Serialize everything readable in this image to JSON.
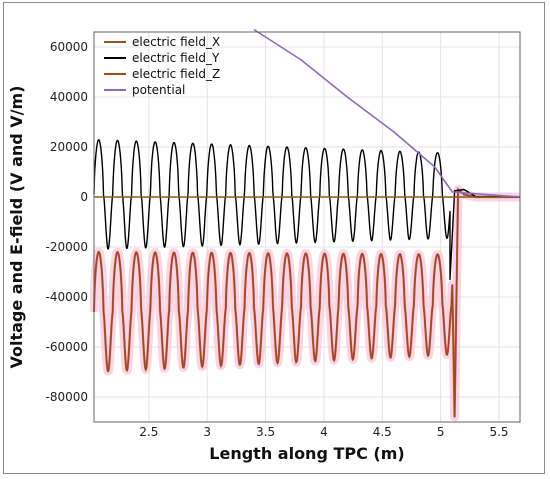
{
  "chart_data": {
    "type": "line",
    "xlabel": "Length along TPC (m)",
    "ylabel": "Voltage and E-field (V and V/m)",
    "xlim": [
      2.03,
      5.68
    ],
    "ylim": [
      -90000,
      66000
    ],
    "x_ticks": [
      "2.5",
      "3",
      "3.5",
      "4",
      "4.5",
      "5",
      "5.5"
    ],
    "y_ticks": [
      "60000",
      "40000",
      "20000",
      "0",
      "-20000",
      "-40000",
      "-60000",
      "-80000"
    ],
    "grid": true,
    "legend_position": "top-left",
    "series": [
      {
        "name": "electric field_X",
        "color": "#8b5a1a",
        "kind": "flat",
        "points": [
          [
            2.03,
            0
          ],
          [
            5.68,
            0
          ]
        ]
      },
      {
        "name": "electric field_Y",
        "color": "#000000",
        "kind": "oscillation",
        "cycles_per_m": 6.2,
        "center_start": 1000,
        "center_end": 500,
        "amp_start": 22000,
        "amp_end": 17000,
        "end_x": 5.08,
        "tail": [
          [
            5.08,
            -33000
          ],
          [
            5.12,
            2500
          ],
          [
            5.2,
            3000
          ],
          [
            5.3,
            200
          ],
          [
            5.68,
            0
          ]
        ]
      },
      {
        "name": "electric field_Z",
        "color": "#9b4a1a",
        "fill_color": "#f5c8dc",
        "kind": "oscillation",
        "cycles_per_m": 6.2,
        "center_start": -46000,
        "center_end": -43000,
        "amp_start": 24000,
        "amp_end": 20000,
        "end_x": 5.1,
        "tail": [
          [
            5.12,
            -88000
          ],
          [
            5.15,
            3000
          ],
          [
            5.2,
            1000
          ],
          [
            5.3,
            0
          ],
          [
            5.68,
            0
          ]
        ]
      },
      {
        "name": "potential",
        "color": "#8b6bbf",
        "kind": "line",
        "points": [
          [
            3.4,
            67000
          ],
          [
            3.8,
            55000
          ],
          [
            4.2,
            40000
          ],
          [
            4.6,
            26000
          ],
          [
            4.95,
            12000
          ],
          [
            5.1,
            2000
          ],
          [
            5.68,
            0
          ]
        ]
      }
    ]
  }
}
